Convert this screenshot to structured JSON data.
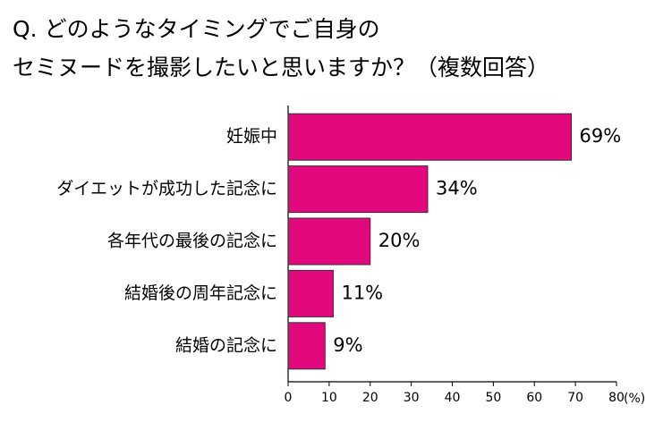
{
  "chart_data": {
    "type": "barh",
    "title": [
      "Q. どのようなタイミングでご自身の",
      "セミヌードを撮影したいと思いますか？（複数回答）"
    ],
    "categories": [
      "妊娠中",
      "ダイエットが成功した記念に",
      "各年代の最後の記念に",
      "結婚後の周年記念に",
      "結婚の記念に"
    ],
    "values": [
      69,
      34,
      20,
      11,
      9
    ],
    "value_labels": [
      "69%",
      "34%",
      "20%",
      "11%",
      "9%"
    ],
    "color": "#e2087e",
    "xlabel": "(%)",
    "xlim": [
      0,
      80
    ],
    "xticks": [
      0,
      10,
      20,
      30,
      40,
      50,
      60,
      70,
      80
    ]
  }
}
